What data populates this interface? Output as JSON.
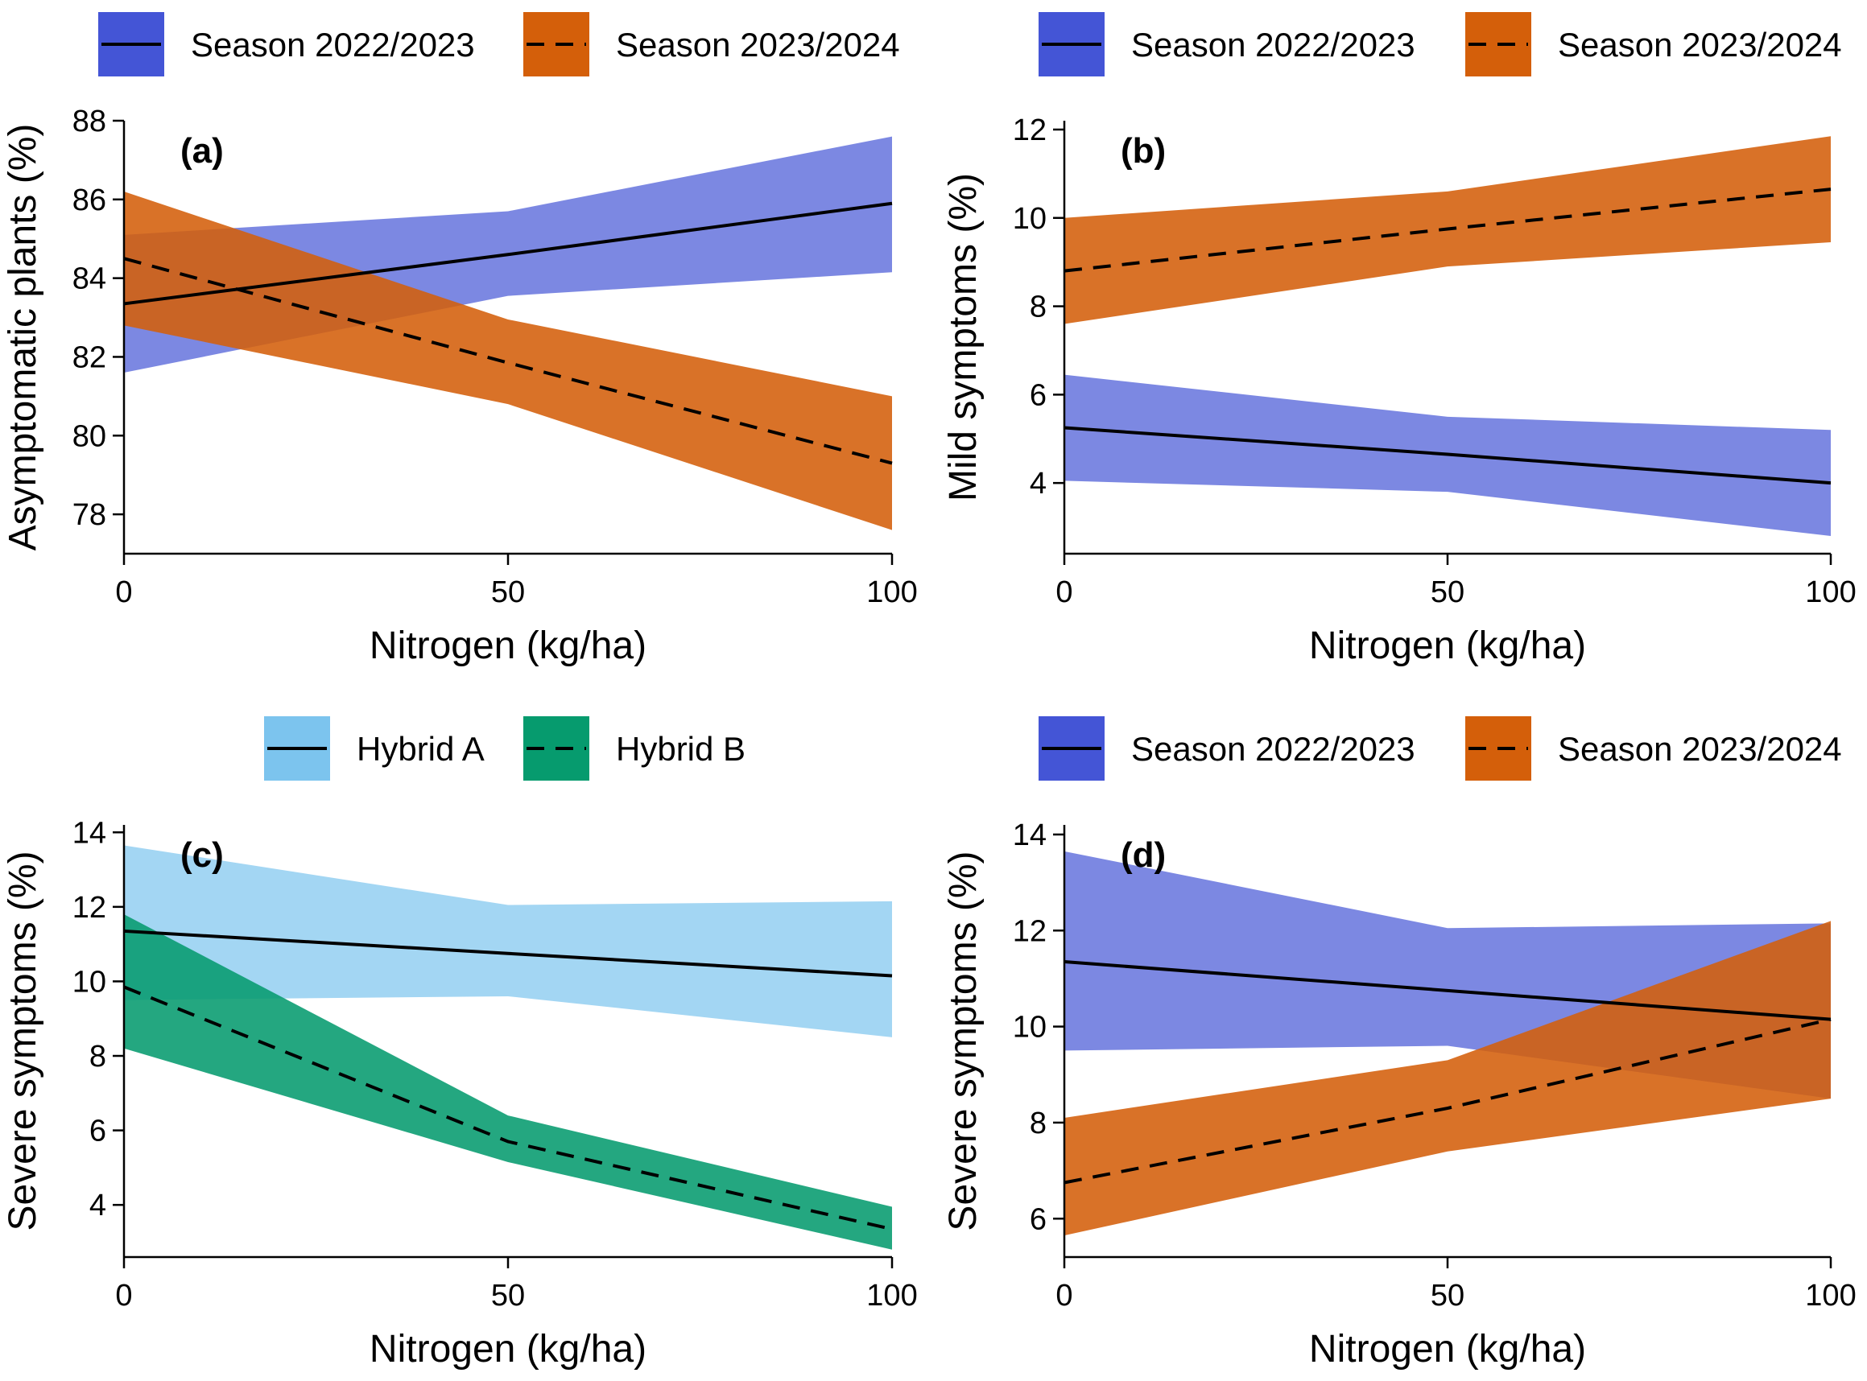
{
  "colors": {
    "season_2022_2023": "#4455d6",
    "season_2023_2024": "#d45f0a",
    "hybrid_a": "#7cc4ee",
    "hybrid_b": "#069b6e",
    "line": "#000000"
  },
  "chart_data": [
    {
      "id": "a",
      "type": "line",
      "panel_label": "(a)",
      "xlabel": "Nitrogen (kg/ha)",
      "ylabel": "Asymptomatic plants (%)",
      "xlim": [
        0,
        100
      ],
      "ylim": [
        77,
        88
      ],
      "xticks": [
        0,
        50,
        100
      ],
      "yticks": [
        78,
        80,
        82,
        84,
        86,
        88
      ],
      "x": [
        0,
        50,
        100
      ],
      "legend_position": "top",
      "series": [
        {
          "name": "Season 2022/2023",
          "color_key": "season_2022_2023",
          "dash": "solid",
          "values": [
            83.35,
            84.6,
            85.9
          ],
          "lower": [
            81.6,
            83.55,
            84.15
          ],
          "upper": [
            85.1,
            85.7,
            87.6
          ]
        },
        {
          "name": "Season 2023/2024",
          "color_key": "season_2023_2024",
          "dash": "dashed",
          "values": [
            84.5,
            81.85,
            79.3
          ],
          "lower": [
            82.8,
            80.8,
            77.6
          ],
          "upper": [
            86.2,
            82.95,
            81.0
          ]
        }
      ]
    },
    {
      "id": "b",
      "type": "line",
      "panel_label": "(b)",
      "xlabel": "Nitrogen (kg/ha)",
      "ylabel": "Mild symptoms (%)",
      "xlim": [
        0,
        100
      ],
      "ylim": [
        2.4,
        12.2
      ],
      "xticks": [
        0,
        50,
        100
      ],
      "yticks": [
        4,
        6,
        8,
        10,
        12
      ],
      "x": [
        0,
        50,
        100
      ],
      "legend_position": "top",
      "series": [
        {
          "name": "Season 2022/2023",
          "color_key": "season_2022_2023",
          "dash": "solid",
          "values": [
            5.25,
            4.65,
            4.0
          ],
          "lower": [
            4.05,
            3.8,
            2.8
          ],
          "upper": [
            6.45,
            5.5,
            5.2
          ]
        },
        {
          "name": "Season 2023/2024",
          "color_key": "season_2023_2024",
          "dash": "dashed",
          "values": [
            8.8,
            9.75,
            10.65
          ],
          "lower": [
            7.6,
            8.9,
            9.45
          ],
          "upper": [
            10.0,
            10.6,
            11.85
          ]
        }
      ]
    },
    {
      "id": "c",
      "type": "line",
      "panel_label": "(c)",
      "xlabel": "Nitrogen (kg/ha)",
      "ylabel": "Severe symptoms (%)",
      "xlim": [
        0,
        100
      ],
      "ylim": [
        2.6,
        14.2
      ],
      "xticks": [
        0,
        50,
        100
      ],
      "yticks": [
        4,
        6,
        8,
        10,
        12,
        14
      ],
      "x": [
        0,
        50,
        100
      ],
      "legend_position": "top",
      "series": [
        {
          "name": "Hybrid A",
          "color_key": "hybrid_a",
          "dash": "solid",
          "values": [
            11.35,
            10.75,
            10.15
          ],
          "lower": [
            9.5,
            9.6,
            8.5
          ],
          "upper": [
            13.65,
            12.05,
            12.15
          ]
        },
        {
          "name": "Hybrid B",
          "color_key": "hybrid_b",
          "dash": "dashed",
          "values": [
            9.85,
            5.7,
            3.35
          ],
          "lower": [
            8.2,
            5.15,
            2.8
          ],
          "upper": [
            11.8,
            6.4,
            3.95
          ]
        }
      ]
    },
    {
      "id": "d",
      "type": "line",
      "panel_label": "(d)",
      "xlabel": "Nitrogen (kg/ha)",
      "ylabel": "Severe symptoms (%)",
      "xlim": [
        0,
        100
      ],
      "ylim": [
        5.2,
        14.2
      ],
      "xticks": [
        0,
        50,
        100
      ],
      "yticks": [
        6,
        8,
        10,
        12,
        14
      ],
      "x": [
        0,
        50,
        100
      ],
      "legend_position": "top",
      "series": [
        {
          "name": "Season 2022/2023",
          "color_key": "season_2022_2023",
          "dash": "solid",
          "values": [
            11.35,
            10.75,
            10.15
          ],
          "lower": [
            9.5,
            9.6,
            8.5
          ],
          "upper": [
            13.65,
            12.05,
            12.15
          ]
        },
        {
          "name": "Season 2023/2024",
          "color_key": "season_2023_2024",
          "dash": "dashed",
          "values": [
            6.75,
            8.3,
            10.15
          ],
          "lower": [
            5.65,
            7.4,
            8.5
          ],
          "upper": [
            8.1,
            9.3,
            12.2
          ]
        }
      ]
    }
  ]
}
